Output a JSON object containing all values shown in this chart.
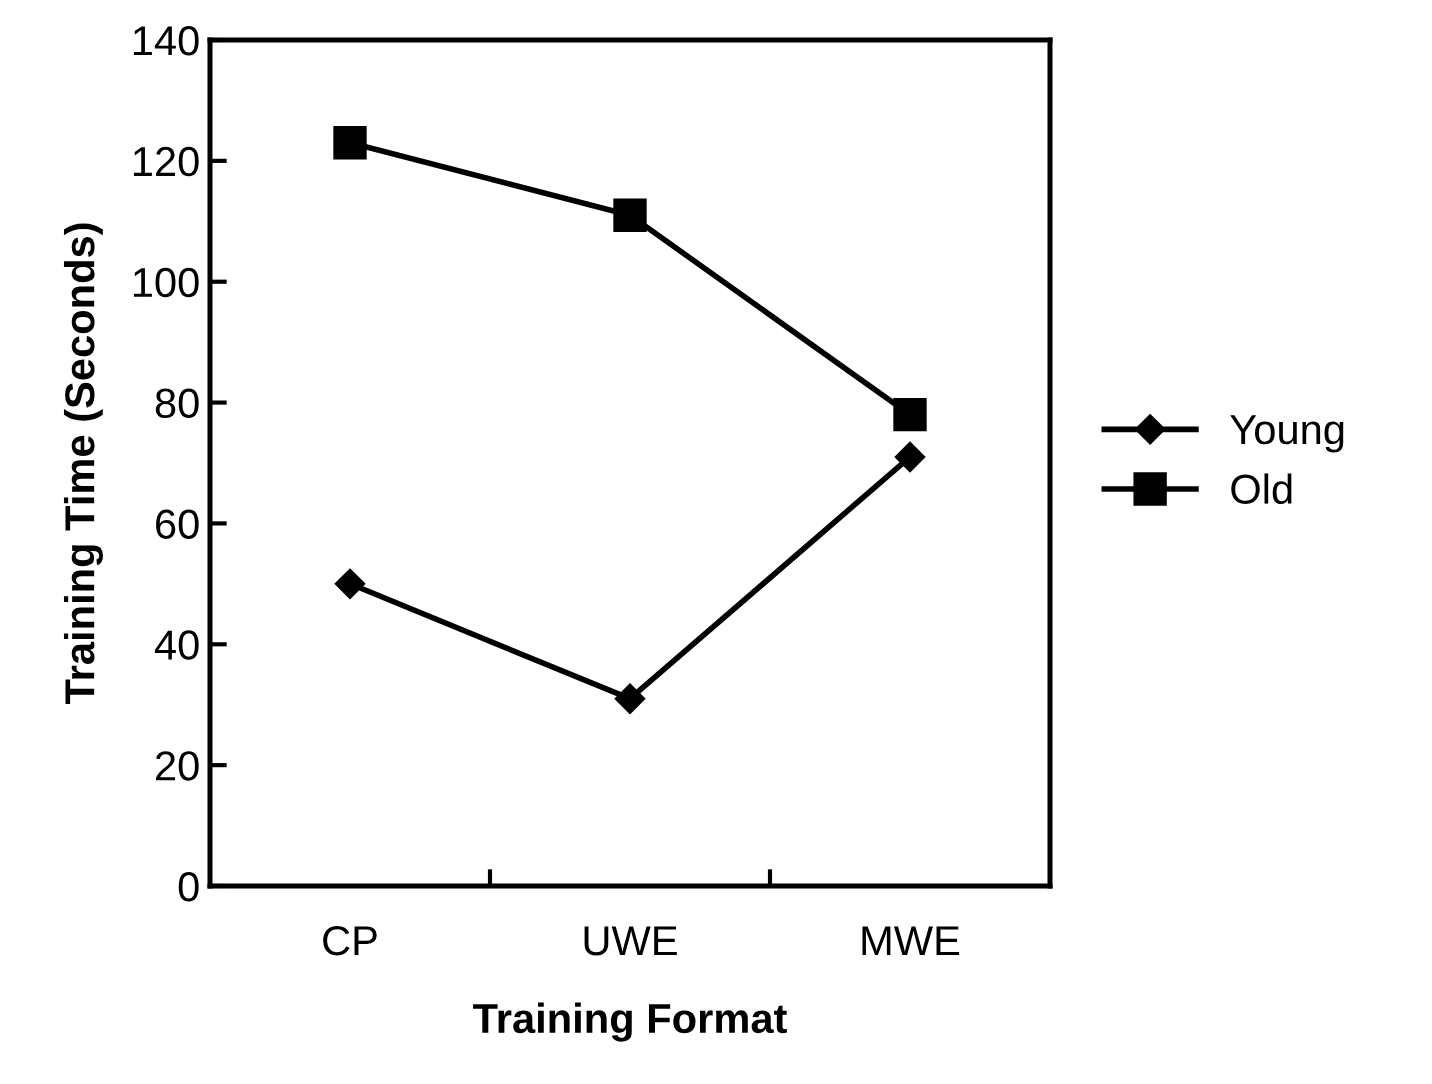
{
  "chart_data": {
    "type": "line",
    "xlabel": "Training Format",
    "ylabel": "Training Time (Seconds)",
    "categories": [
      "CP",
      "UWE",
      "MWE"
    ],
    "series": [
      {
        "name": "Young",
        "color": "#000000",
        "marker": "diamond",
        "values": [
          50,
          31,
          71
        ]
      },
      {
        "name": "Old",
        "color": "#000000",
        "marker": "square",
        "values": [
          123,
          111,
          78
        ]
      }
    ],
    "ylim": [
      0,
      140
    ],
    "yticks": [
      0,
      20,
      40,
      60,
      80,
      100,
      120,
      140
    ],
    "grid": false,
    "legend": "right",
    "line_style": "solid"
  }
}
